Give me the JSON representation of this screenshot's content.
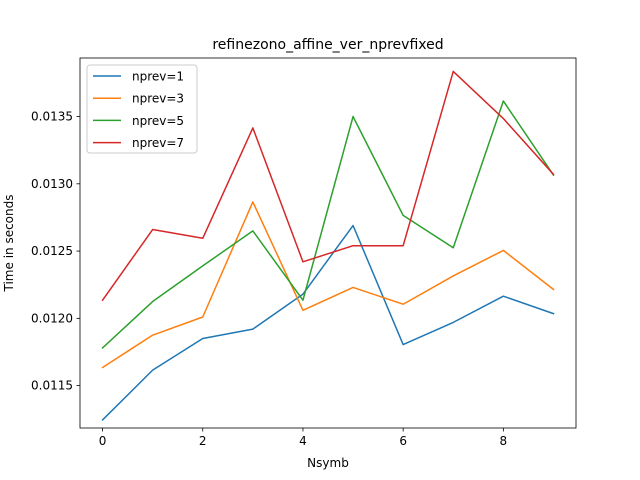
{
  "chart_data": {
    "type": "line",
    "title": "refinezono_affine_ver_nprevfixed",
    "xlabel": "Nsymb",
    "ylabel": "Time in seconds",
    "xlim": [
      -0.45,
      9.45
    ],
    "ylim": [
      0.011185,
      0.013935
    ],
    "xticks": [
      0,
      2,
      4,
      6,
      8
    ],
    "xtick_labels": [
      "0",
      "2",
      "4",
      "6",
      "8"
    ],
    "yticks": [
      0.0115,
      0.012,
      0.0125,
      0.013,
      0.0135
    ],
    "ytick_labels": [
      "0.0115",
      "0.0120",
      "0.0125",
      "0.0130",
      "0.0135"
    ],
    "grid": false,
    "legend_position": "upper-left",
    "x": [
      0,
      1,
      2,
      3,
      4,
      5,
      6,
      7,
      8,
      9
    ],
    "series": [
      {
        "name": "nprev=1",
        "color": "#1f77b4",
        "values": [
          0.011245,
          0.011615,
          0.01185,
          0.01192,
          0.01218,
          0.01269,
          0.011805,
          0.01197,
          0.012165,
          0.012035
        ]
      },
      {
        "name": "nprev=3",
        "color": "#ff7f0e",
        "values": [
          0.011635,
          0.011875,
          0.01201,
          0.012865,
          0.01206,
          0.01223,
          0.012105,
          0.012315,
          0.012505,
          0.012215
        ]
      },
      {
        "name": "nprev=5",
        "color": "#2ca02c",
        "values": [
          0.01178,
          0.012125,
          0.01239,
          0.01265,
          0.012135,
          0.0135,
          0.012765,
          0.012525,
          0.013615,
          0.013065
        ]
      },
      {
        "name": "nprev=7",
        "color": "#d62728",
        "values": [
          0.012135,
          0.01266,
          0.012595,
          0.013415,
          0.01242,
          0.01254,
          0.01254,
          0.013835,
          0.013485,
          0.01307
        ]
      }
    ]
  }
}
